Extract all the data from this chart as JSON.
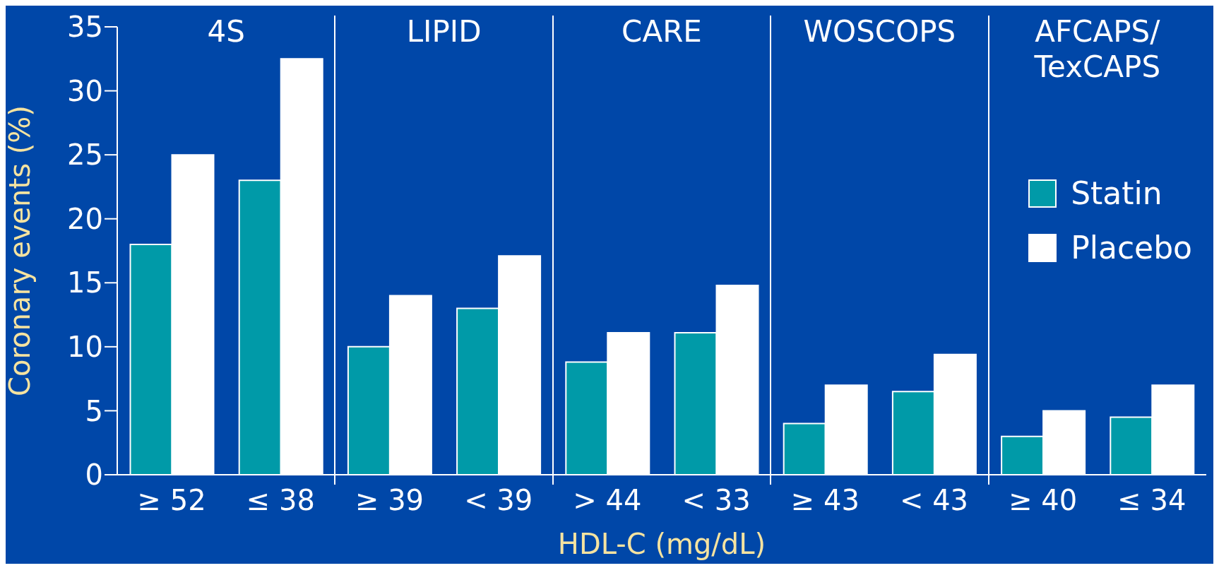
{
  "chart_data": {
    "type": "bar",
    "xlabel": "HDL-C (mg/dL)",
    "ylabel": "Coronary events (%)",
    "categories": [
      "≥ 52",
      "≤ 38",
      "≥ 39",
      "< 39",
      "> 44",
      "< 33",
      "≥ 43",
      "< 43",
      "≥ 40",
      "≤ 34"
    ],
    "series": [
      {
        "name": "Statin",
        "color": "#009aa8",
        "values": [
          18,
          23,
          10,
          13,
          8.8,
          11.1,
          4,
          6.5,
          3,
          4.5
        ]
      },
      {
        "name": "Placebo",
        "color": "#ffffff",
        "values": [
          25,
          32.5,
          14,
          17.1,
          11.1,
          14.8,
          7,
          9.4,
          5,
          7
        ]
      }
    ],
    "annotations": [
      "4S",
      "LIPID",
      "CARE",
      "WOSCOPS",
      "AFCAPS/TexCAPS"
    ],
    "ylim": [
      0,
      35
    ],
    "yticks": [
      0,
      5,
      10,
      15,
      20,
      25,
      30,
      35
    ],
    "grid": false,
    "legend": "right"
  }
}
